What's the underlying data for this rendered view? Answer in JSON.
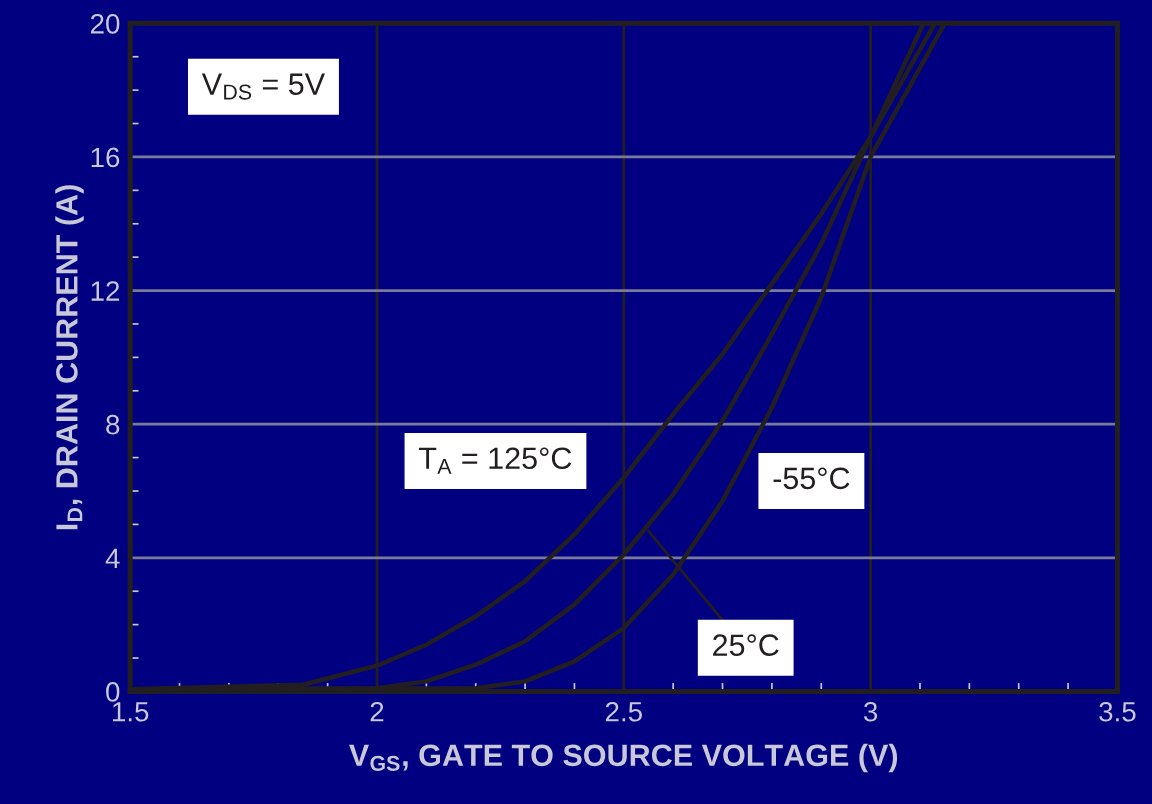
{
  "chart_data": {
    "type": "line",
    "xlabel": "V$_{GS}$, GATE TO SOURCE VOLTAGE (V)",
    "ylabel": "I$_{D}$, DRAIN CURRENT (A)",
    "xlim": [
      1.5,
      3.5
    ],
    "xticks": [
      1.5,
      2,
      2.5,
      3,
      3.5
    ],
    "ylim": [
      0,
      20
    ],
    "yticks": [
      0,
      4,
      8,
      12,
      16,
      20
    ],
    "grid": true,
    "legend": false,
    "marker": "none",
    "line_style": "solid",
    "series": [
      {
        "color": "#231f20",
        "x": [
          1.5,
          1.85,
          2.0,
          2.1,
          2.2,
          2.3,
          2.4,
          2.5,
          2.6,
          2.7,
          2.8,
          2.9,
          3.0,
          3.107
        ],
        "values": [
          0.07,
          0.2,
          0.77,
          1.4,
          2.25,
          3.3,
          4.7,
          6.4,
          8.3,
          10.1,
          12.2,
          14.3,
          16.6,
          20
        ]
      },
      {
        "color": "#231f20",
        "x": [
          1.5,
          2.0,
          2.1,
          2.2,
          2.3,
          2.4,
          2.5,
          2.6,
          2.7,
          2.8,
          2.9,
          3.0,
          3.13
        ],
        "values": [
          0.05,
          0.1,
          0.3,
          0.8,
          1.5,
          2.6,
          4.1,
          5.9,
          8.1,
          10.7,
          13.4,
          16.6,
          20
        ]
      },
      {
        "color": "#231f20",
        "x": [
          1.5,
          2.2,
          2.3,
          2.4,
          2.5,
          2.6,
          2.7,
          2.8,
          2.9,
          3.0,
          3.15
        ],
        "values": [
          0.05,
          0.1,
          0.3,
          0.9,
          1.9,
          3.5,
          5.7,
          8.5,
          11.8,
          16.0,
          20
        ]
      }
    ],
    "annotations": [
      "V$_{DS}$ = 5V",
      "T$_{A}$ = 125°C",
      "-55°C",
      {
        "text": "25°C",
        "x": 2.55,
        "y": 4.8
      }
    ]
  }
}
